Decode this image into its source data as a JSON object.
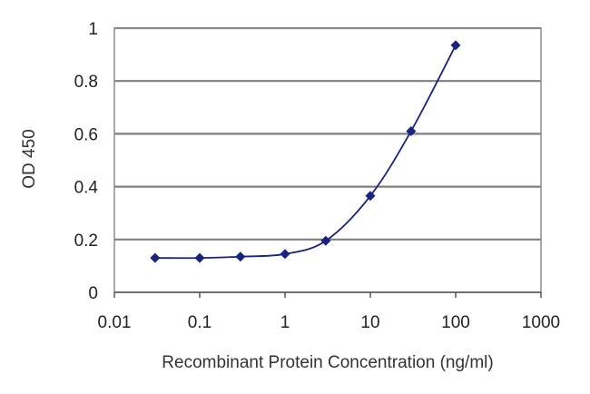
{
  "chart_data": {
    "type": "line",
    "xscale": "log",
    "xlim": [
      0.01,
      1000
    ],
    "ylim": [
      0,
      1
    ],
    "xticks": [
      "0.01",
      "0.1",
      "1",
      "10",
      "100",
      "1000"
    ],
    "yticks": [
      "0",
      "0.2",
      "0.4",
      "0.6",
      "0.8",
      "1"
    ],
    "xlabel": "Recombinant Protein Concentration (ng/ml)",
    "ylabel": "OD 450",
    "grid": "horizontal",
    "series": [
      {
        "x": [
          0.03,
          0.1,
          0.3,
          1,
          3,
          10,
          30,
          100
        ],
        "values": [
          0.13,
          0.13,
          0.135,
          0.145,
          0.195,
          0.365,
          0.61,
          0.935
        ],
        "color": "#1a237e"
      }
    ]
  }
}
